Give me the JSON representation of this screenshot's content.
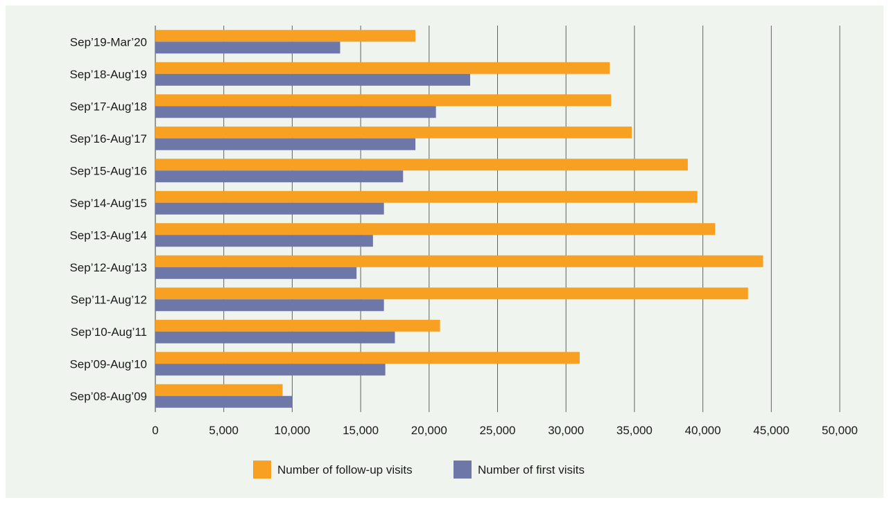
{
  "chart_data": {
    "type": "bar",
    "orientation": "horizontal",
    "categories": [
      "Sep’19-Mar’20",
      "Sep’18-Aug’19",
      "Sep’17-Aug’18",
      "Sep’16-Aug’17",
      "Sep’15-Aug’16",
      "Sep’14-Aug’15",
      "Sep’13-Aug’14",
      "Sep’12-Aug’13",
      "Sep’11-Aug’12",
      "Sep’10-Aug’11",
      "Sep’09-Aug’10",
      "Sep’08-Aug’09"
    ],
    "series": [
      {
        "name": "Number of follow-up visits",
        "color": "#f7a021",
        "values": [
          19000,
          33200,
          33300,
          34800,
          38900,
          39600,
          40900,
          44400,
          43300,
          20800,
          31000,
          9300
        ]
      },
      {
        "name": "Number of first visits",
        "color": "#6d77a8",
        "values": [
          13500,
          23000,
          20500,
          19000,
          18100,
          16700,
          15900,
          14700,
          16700,
          17500,
          16800,
          10000
        ]
      }
    ],
    "xlim": [
      0,
      50000
    ],
    "xticks": [
      0,
      5000,
      10000,
      15000,
      20000,
      25000,
      30000,
      35000,
      40000,
      45000,
      50000
    ],
    "xtick_labels": [
      "0",
      "5,000",
      "10,000",
      "15,000",
      "20,000",
      "25,000",
      "30,000",
      "35,000",
      "40,000",
      "45,000",
      "50,000"
    ],
    "title": "",
    "xlabel": "",
    "ylabel": "",
    "grid": "vertical",
    "legend_position": "bottom-center"
  }
}
